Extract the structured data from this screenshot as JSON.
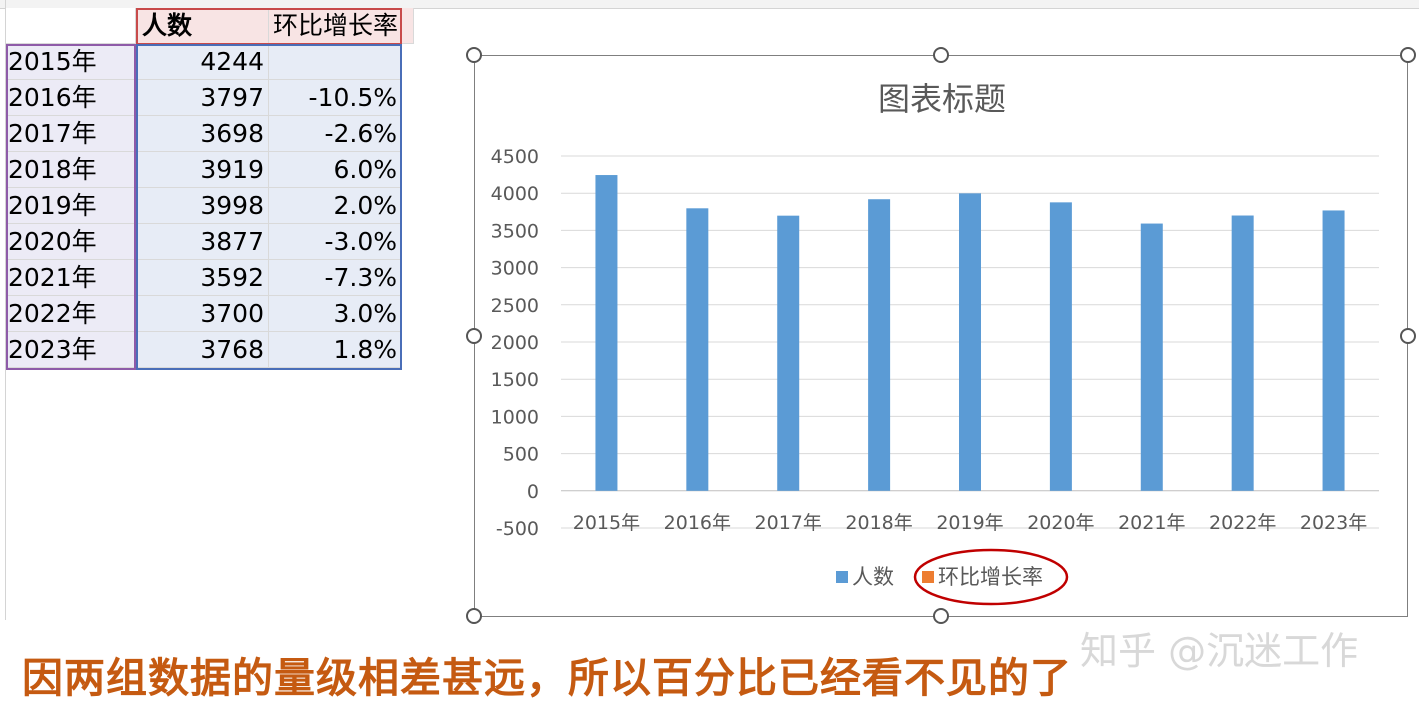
{
  "sheet": {
    "headers": {
      "count": "人数",
      "rate": "环比增长率"
    },
    "rows": [
      {
        "year": "2015年",
        "count": "4244",
        "rate": ""
      },
      {
        "year": "2016年",
        "count": "3797",
        "rate": "-10.5%"
      },
      {
        "year": "2017年",
        "count": "3698",
        "rate": "-2.6%"
      },
      {
        "year": "2018年",
        "count": "3919",
        "rate": "6.0%"
      },
      {
        "year": "2019年",
        "count": "3998",
        "rate": "2.0%"
      },
      {
        "year": "2020年",
        "count": "3877",
        "rate": "-3.0%"
      },
      {
        "year": "2021年",
        "count": "3592",
        "rate": "-7.3%"
      },
      {
        "year": "2022年",
        "count": "3700",
        "rate": "3.0%"
      },
      {
        "year": "2023年",
        "count": "3768",
        "rate": "1.8%"
      }
    ]
  },
  "chart_data": {
    "type": "bar",
    "title": "图表标题",
    "categories": [
      "2015年",
      "2016年",
      "2017年",
      "2018年",
      "2019年",
      "2020年",
      "2021年",
      "2022年",
      "2023年"
    ],
    "series": [
      {
        "name": "人数",
        "values": [
          4244,
          3797,
          3698,
          3919,
          3998,
          3877,
          3592,
          3700,
          3768
        ],
        "color": "#5b9bd5"
      },
      {
        "name": "环比增长率",
        "values": [
          null,
          -0.105,
          -0.026,
          0.06,
          0.02,
          -0.03,
          -0.073,
          0.03,
          0.018
        ],
        "color": "#ed7d31"
      }
    ],
    "yticks": [
      "-500",
      "0",
      "500",
      "1000",
      "1500",
      "2000",
      "2500",
      "3000",
      "3500",
      "4000",
      "4500"
    ],
    "ylim": [
      -500,
      4500
    ],
    "grid": true,
    "legend_position": "bottom"
  },
  "annotation_color": "#c00000",
  "caption": "因两组数据的量级相差甚远，所以百分比已经看不见的了",
  "watermark": "知乎 @沉迷工作"
}
